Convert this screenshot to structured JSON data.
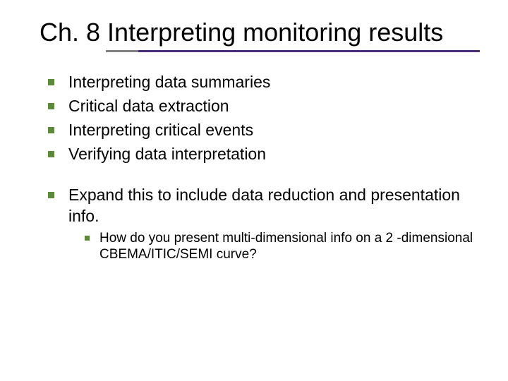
{
  "colors": {
    "bullet": "#5b8a3a",
    "rule_grey": "#808080",
    "rule_purple": "#4a2c7a",
    "text": "#000000",
    "background": "#ffffff"
  },
  "typography": {
    "title_fontsize": 36,
    "bullet_lvl1_fontsize": 23,
    "bullet_lvl2_fontsize": 19,
    "font_family": "Verdana"
  },
  "title": "Ch. 8  Interpreting monitoring results",
  "group1": [
    "Interpreting data summaries",
    "Critical data extraction",
    "Interpreting critical events",
    "Verifying data interpretation"
  ],
  "group2": {
    "text": "Expand this to include data reduction and presentation info.",
    "sub": [
      "How do you present multi-dimensional info on a 2 -dimensional CBEMA/ITIC/SEMI curve?"
    ]
  }
}
